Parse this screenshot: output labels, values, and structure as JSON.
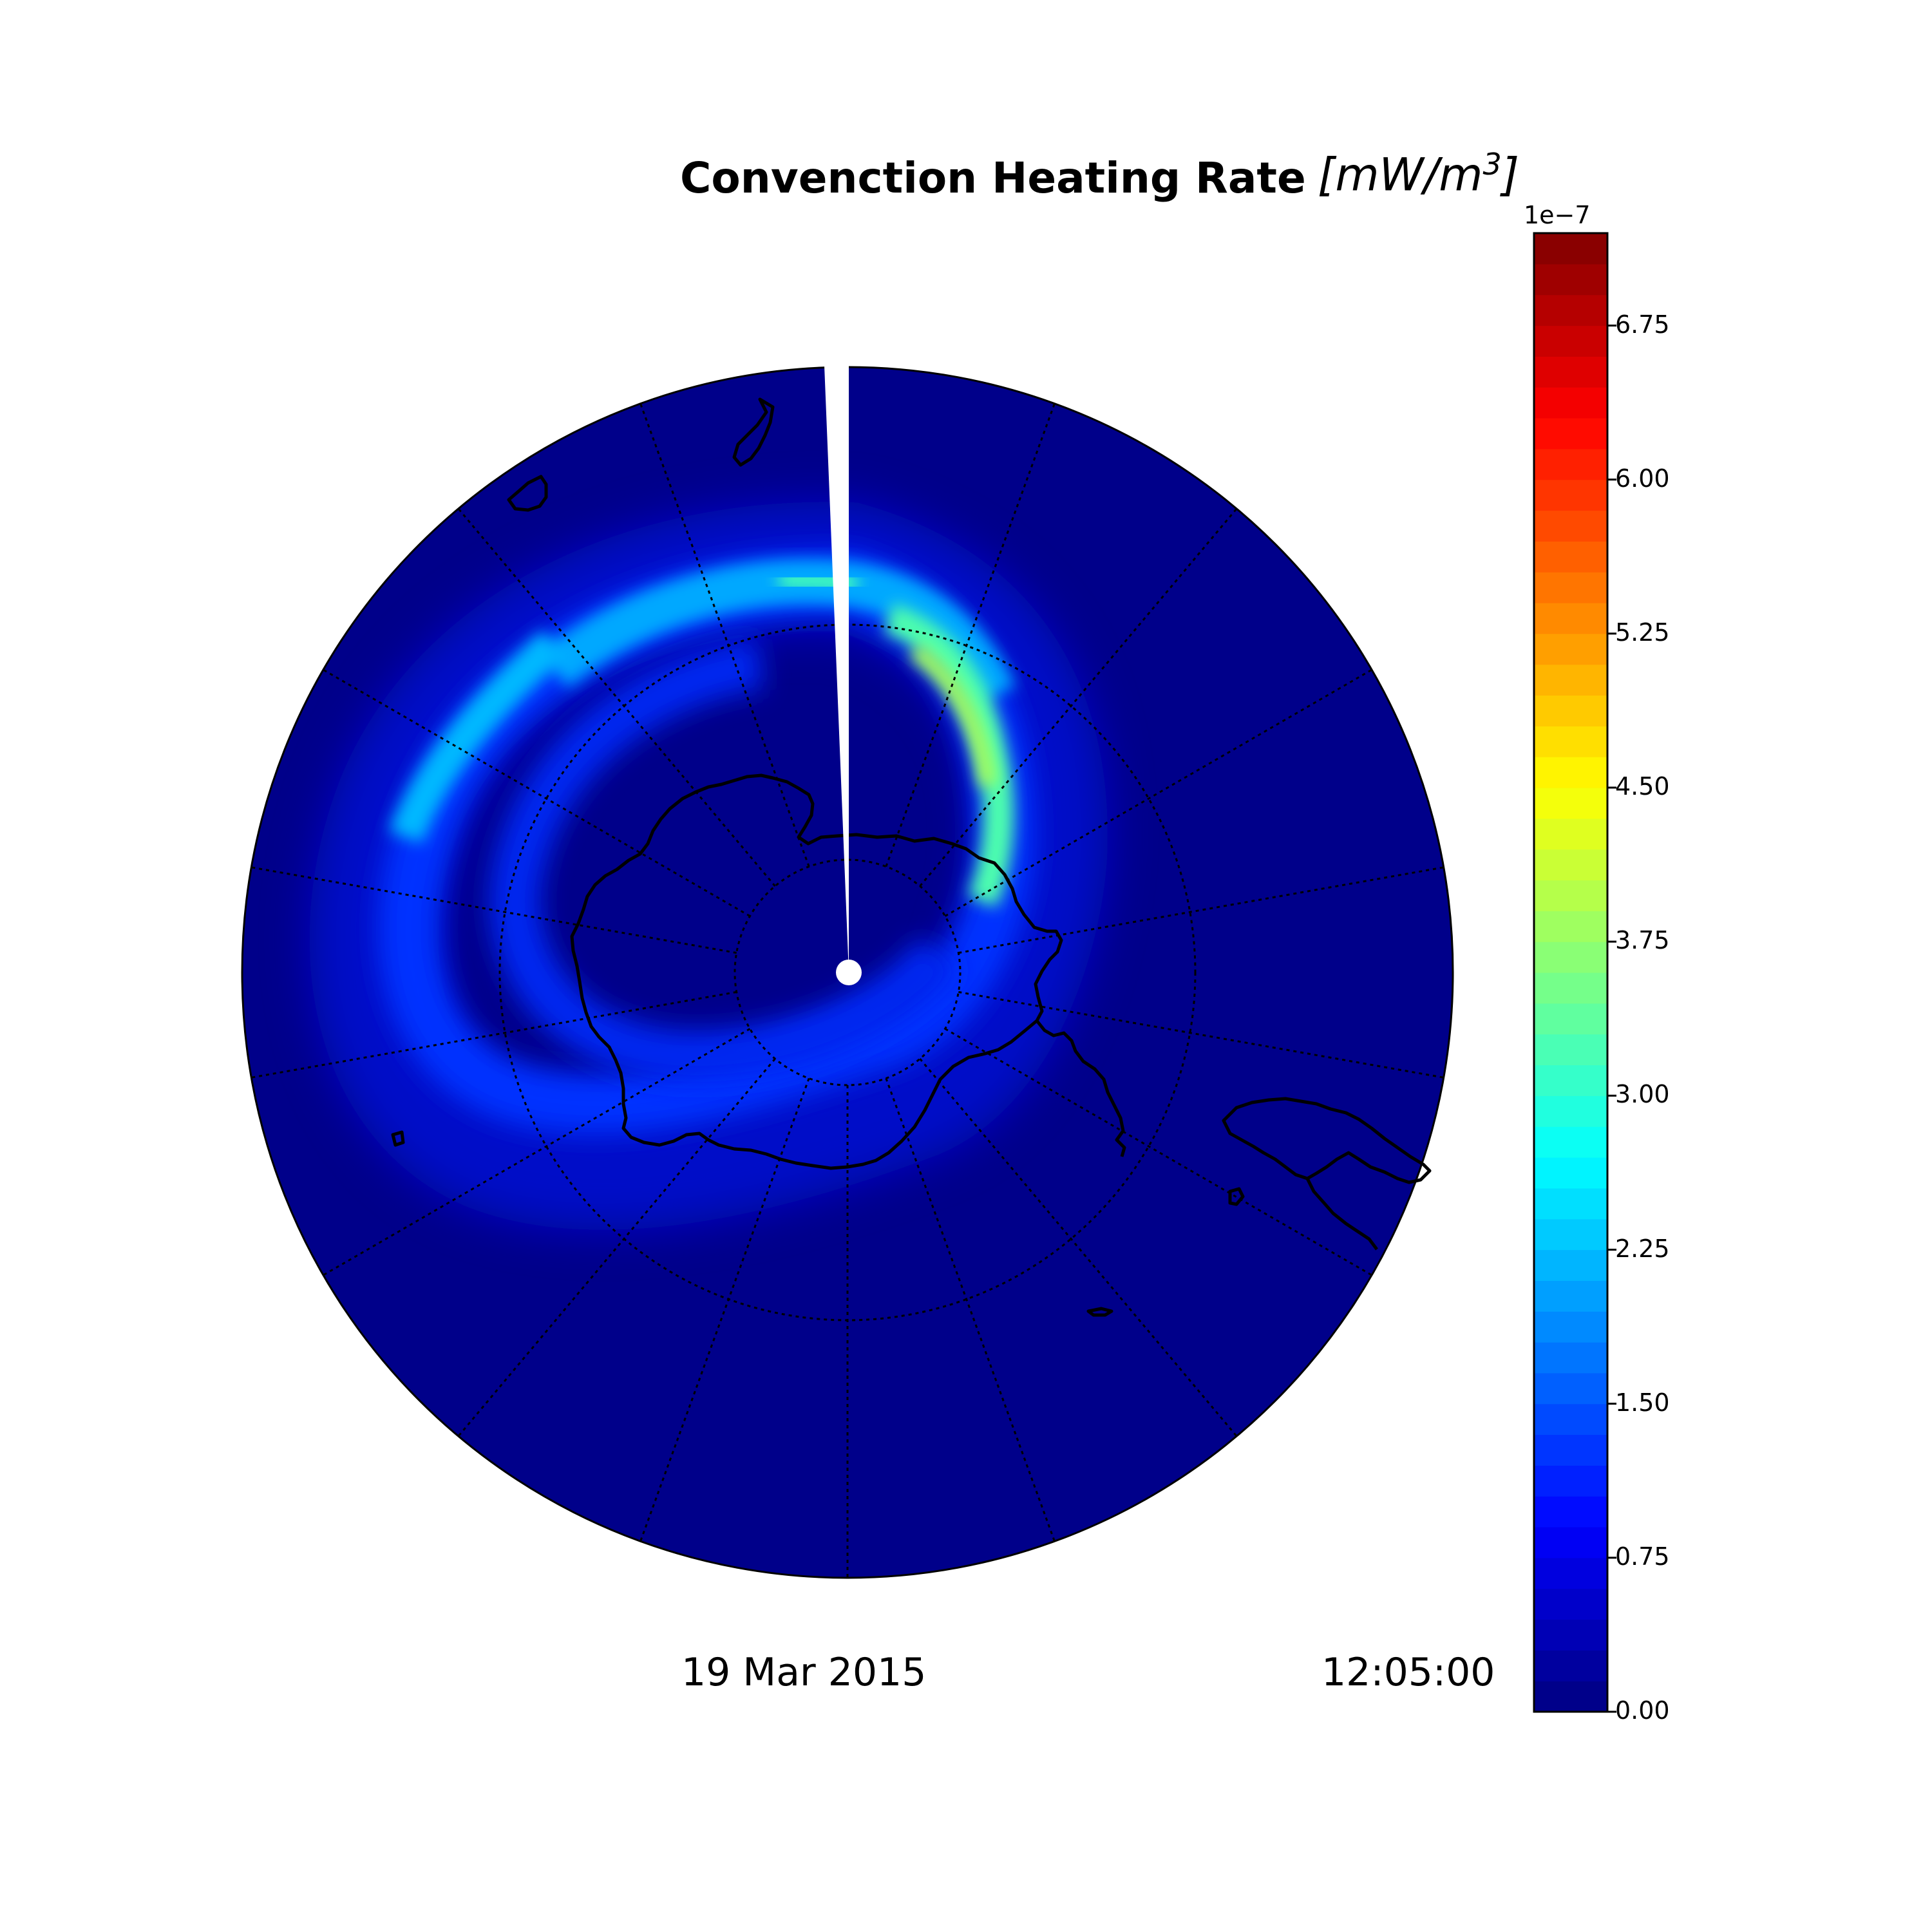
{
  "title": {
    "main": "Convenction Heating Rate",
    "units_open": "[",
    "units_var": "mW/m",
    "units_sup": "3",
    "units_close": "]"
  },
  "footer": {
    "date": "19 Mar 2015",
    "time": "12:05:00"
  },
  "colorbar": {
    "exponent": "1e−7",
    "ticks": [
      "0.00",
      "0.75",
      "1.50",
      "2.25",
      "3.00",
      "3.75",
      "4.50",
      "5.25",
      "6.00",
      "6.75"
    ],
    "tick_values": [
      0,
      0.75,
      1.5,
      2.25,
      3.0,
      3.75,
      4.5,
      5.25,
      6.0,
      6.75
    ],
    "range": [
      0,
      7.2
    ],
    "levels": 48,
    "colormap": "jet"
  },
  "map": {
    "projection": "south-polar-stereographic",
    "grid": true,
    "background_color": "#00008a",
    "coastline_color": "#000000",
    "pole_marker_color": "#ffffff"
  }
}
